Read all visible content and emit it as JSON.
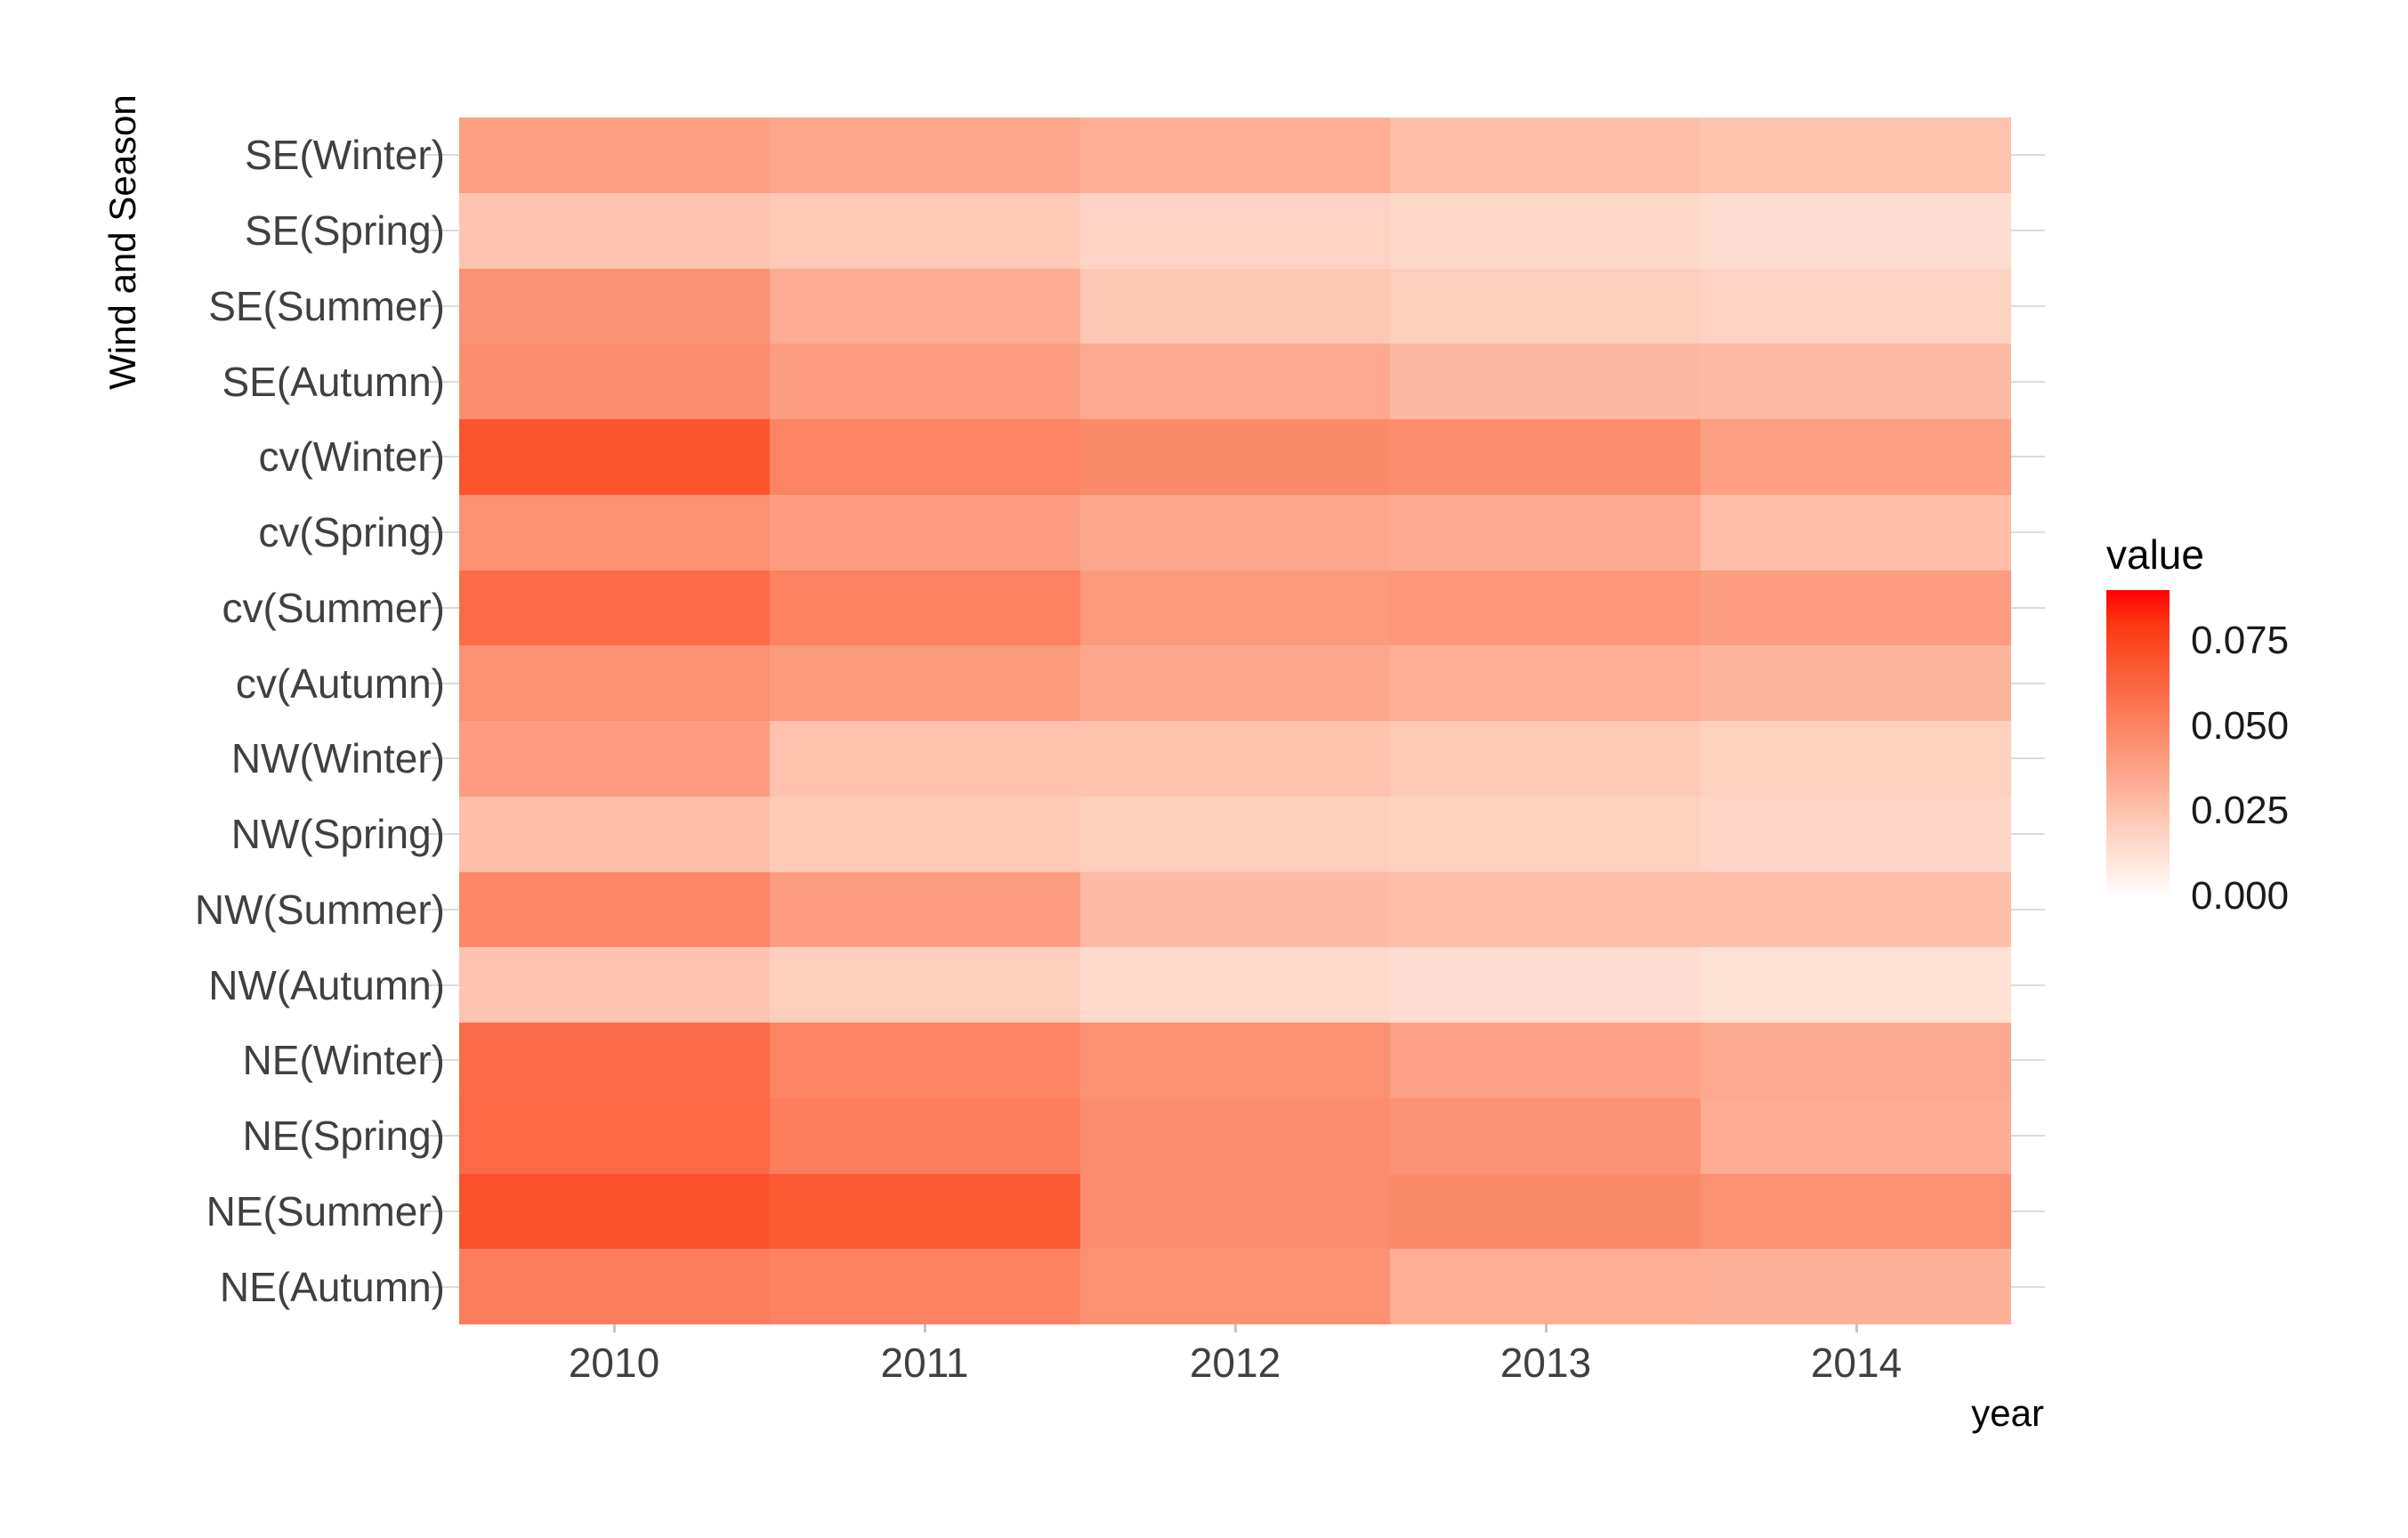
{
  "chart_data": {
    "type": "heatmap",
    "title": "",
    "xlabel": "year",
    "ylabel": "Wind and Season",
    "x_categories": [
      "2010",
      "2011",
      "2012",
      "2013",
      "2014"
    ],
    "y_categories": [
      "SE(Winter)",
      "SE(Spring)",
      "SE(Summer)",
      "SE(Autumn)",
      "cv(Winter)",
      "cv(Spring)",
      "cv(Summer)",
      "cv(Autumn)",
      "NW(Winter)",
      "NW(Spring)",
      "NW(Summer)",
      "NW(Autumn)",
      "NE(Winter)",
      "NE(Spring)",
      "NE(Summer)",
      "NE(Autumn)"
    ],
    "series": [
      {
        "name": "SE(Winter)",
        "values": [
          0.039,
          0.036,
          0.033,
          0.027,
          0.025
        ]
      },
      {
        "name": "SE(Spring)",
        "values": [
          0.024,
          0.022,
          0.018,
          0.016,
          0.014
        ]
      },
      {
        "name": "SE(Summer)",
        "values": [
          0.044,
          0.034,
          0.023,
          0.02,
          0.018
        ]
      },
      {
        "name": "SE(Autumn)",
        "values": [
          0.046,
          0.04,
          0.035,
          0.029,
          0.028
        ]
      },
      {
        "name": "cv(Winter)",
        "values": [
          0.069,
          0.05,
          0.047,
          0.046,
          0.039
        ]
      },
      {
        "name": "cv(Spring)",
        "values": [
          0.045,
          0.04,
          0.036,
          0.035,
          0.027
        ]
      },
      {
        "name": "cv(Summer)",
        "values": [
          0.06,
          0.051,
          0.041,
          0.042,
          0.04
        ]
      },
      {
        "name": "cv(Autumn)",
        "values": [
          0.045,
          0.041,
          0.036,
          0.033,
          0.03
        ]
      },
      {
        "name": "NW(Winter)",
        "values": [
          0.04,
          0.025,
          0.025,
          0.022,
          0.019
        ]
      },
      {
        "name": "NW(Spring)",
        "values": [
          0.026,
          0.022,
          0.02,
          0.019,
          0.017
        ]
      },
      {
        "name": "NW(Summer)",
        "values": [
          0.049,
          0.04,
          0.028,
          0.027,
          0.026
        ]
      },
      {
        "name": "NW(Autumn)",
        "values": [
          0.024,
          0.02,
          0.015,
          0.014,
          0.012
        ]
      },
      {
        "name": "NE(Winter)",
        "values": [
          0.06,
          0.05,
          0.045,
          0.038,
          0.035
        ]
      },
      {
        "name": "NE(Spring)",
        "values": [
          0.061,
          0.053,
          0.046,
          0.044,
          0.034
        ]
      },
      {
        "name": "NE(Summer)",
        "values": [
          0.07,
          0.067,
          0.046,
          0.047,
          0.045
        ]
      },
      {
        "name": "NE(Autumn)",
        "values": [
          0.053,
          0.051,
          0.045,
          0.033,
          0.032
        ]
      }
    ],
    "legend": {
      "title": "value",
      "tick_labels": [
        "0.075",
        "0.050",
        "0.025",
        "0.000"
      ],
      "tick_values": [
        0.075,
        0.05,
        0.025,
        0.0
      ],
      "domain": [
        0,
        0.09
      ],
      "position": "right"
    },
    "grid": "row-center stubs visible outside tile area",
    "axis_ranges": {
      "x": [
        "2010",
        "2014"
      ],
      "y_rows": 16
    }
  },
  "colors": {
    "background": "#FFFFFF",
    "grid_line": "#DBDBDB",
    "axis_tick": "#C4C4C4",
    "tick_label": "#404040",
    "axis_title": "#000000",
    "gradient_low": "#FFFFFF",
    "gradient_high": "#FF0000",
    "gradient_stops": [
      [
        0.0,
        "#FFFFFF"
      ],
      [
        0.01,
        "#FEE6DB"
      ],
      [
        0.02,
        "#FECEBD"
      ],
      [
        0.03,
        "#FDB59E"
      ],
      [
        0.04,
        "#FC9C80"
      ],
      [
        0.05,
        "#FC8464"
      ],
      [
        0.06,
        "#FB6B48"
      ],
      [
        0.07,
        "#FB522D"
      ],
      [
        0.08,
        "#FA3912"
      ],
      [
        0.09,
        "#FF0000"
      ]
    ]
  }
}
